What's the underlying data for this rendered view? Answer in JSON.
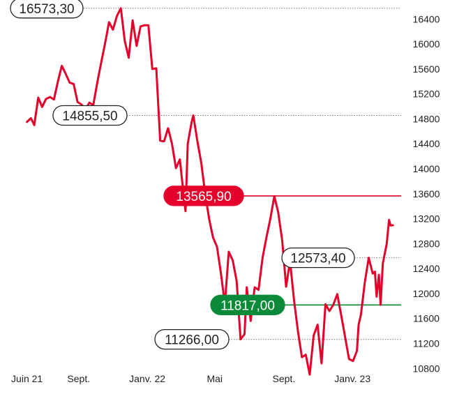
{
  "chart_data": {
    "type": "line",
    "title": "",
    "xlabel": "",
    "ylabel": "",
    "ylim": [
      10600,
      16700
    ],
    "y_ticks": [
      10800,
      11200,
      11600,
      12000,
      12400,
      12800,
      13200,
      13600,
      14000,
      14400,
      14800,
      15200,
      15600,
      16000,
      16400
    ],
    "y_tick_labels": [
      "10800",
      "11200",
      "11600",
      "12000",
      "12400",
      "12800",
      "13200",
      "13600",
      "14000",
      "14400",
      "14800",
      "15200",
      "15600",
      "16000",
      "16400"
    ],
    "x_range": [
      "2021-05-25",
      "2023-03-15"
    ],
    "x_ticks": [
      {
        "date": "2021-06-01",
        "label": "Juin 21"
      },
      {
        "date": "2021-09-01",
        "label": "Sept."
      },
      {
        "date": "2022-01-01",
        "label": "Janv. 22"
      },
      {
        "date": "2022-05-01",
        "label": "Mai"
      },
      {
        "date": "2022-09-01",
        "label": "Sept."
      },
      {
        "date": "2023-01-01",
        "label": "Janv. 23"
      }
    ],
    "grid": false,
    "legend": "none",
    "line_color": "#e4002b",
    "series": [
      {
        "points": [
          [
            "2021-06-01",
            14750
          ],
          [
            "2021-06-08",
            14810
          ],
          [
            "2021-06-14",
            14700
          ],
          [
            "2021-06-21",
            15140
          ],
          [
            "2021-06-28",
            14990
          ],
          [
            "2021-07-05",
            15120
          ],
          [
            "2021-07-12",
            15150
          ],
          [
            "2021-07-19",
            15110
          ],
          [
            "2021-07-26",
            15400
          ],
          [
            "2021-08-02",
            15650
          ],
          [
            "2021-08-09",
            15520
          ],
          [
            "2021-08-16",
            15380
          ],
          [
            "2021-08-23",
            15360
          ],
          [
            "2021-08-30",
            15070
          ],
          [
            "2021-09-06",
            15030
          ],
          [
            "2021-09-13",
            14950
          ],
          [
            "2021-09-20",
            15060
          ],
          [
            "2021-09-27",
            15020
          ],
          [
            "2021-10-04",
            15380
          ],
          [
            "2021-10-11",
            15700
          ],
          [
            "2021-10-18",
            16010
          ],
          [
            "2021-10-25",
            16350
          ],
          [
            "2021-11-01",
            16230
          ],
          [
            "2021-11-08",
            16450
          ],
          [
            "2021-11-15",
            16573.3
          ],
          [
            "2021-11-22",
            16050
          ],
          [
            "2021-11-29",
            15780
          ],
          [
            "2021-12-06",
            16380
          ],
          [
            "2021-12-13",
            15970
          ],
          [
            "2021-12-20",
            16280
          ],
          [
            "2021-12-27",
            16300
          ],
          [
            "2022-01-03",
            16300
          ],
          [
            "2022-01-10",
            15600
          ],
          [
            "2022-01-17",
            15610
          ],
          [
            "2022-01-24",
            14450
          ],
          [
            "2022-01-31",
            14440
          ],
          [
            "2022-02-07",
            14650
          ],
          [
            "2022-02-14",
            14400
          ],
          [
            "2022-02-21",
            14010
          ],
          [
            "2022-02-28",
            14150
          ],
          [
            "2022-03-07",
            13560
          ],
          [
            "2022-03-10",
            13320
          ],
          [
            "2022-03-14",
            14400
          ],
          [
            "2022-03-21",
            14750
          ],
          [
            "2022-03-24",
            14855.5
          ],
          [
            "2022-03-31",
            14450
          ],
          [
            "2022-04-07",
            14100
          ],
          [
            "2022-04-14",
            13600
          ],
          [
            "2022-04-21",
            13200
          ],
          [
            "2022-04-28",
            12900
          ],
          [
            "2022-05-05",
            12750
          ],
          [
            "2022-05-12",
            12330
          ],
          [
            "2022-05-19",
            11830
          ],
          [
            "2022-05-26",
            12670
          ],
          [
            "2022-06-02",
            12530
          ],
          [
            "2022-06-09",
            12200
          ],
          [
            "2022-06-16",
            11266
          ],
          [
            "2022-06-23",
            11350
          ],
          [
            "2022-06-27",
            12100
          ],
          [
            "2022-07-04",
            11560
          ],
          [
            "2022-07-11",
            12100
          ],
          [
            "2022-07-18",
            12060
          ],
          [
            "2022-07-25",
            12570
          ],
          [
            "2022-08-01",
            12900
          ],
          [
            "2022-08-08",
            13200
          ],
          [
            "2022-08-15",
            13560
          ],
          [
            "2022-08-22",
            13300
          ],
          [
            "2022-08-29",
            12850
          ],
          [
            "2022-09-05",
            12110
          ],
          [
            "2022-09-12",
            12520
          ],
          [
            "2022-09-19",
            11900
          ],
          [
            "2022-09-26",
            11400
          ],
          [
            "2022-10-03",
            10980
          ],
          [
            "2022-10-10",
            11020
          ],
          [
            "2022-10-17",
            10700
          ],
          [
            "2022-10-24",
            11330
          ],
          [
            "2022-10-31",
            11500
          ],
          [
            "2022-11-07",
            10880
          ],
          [
            "2022-11-14",
            11830
          ],
          [
            "2022-11-21",
            11720
          ],
          [
            "2022-11-28",
            11820
          ],
          [
            "2022-12-05",
            11990
          ],
          [
            "2022-12-12",
            11650
          ],
          [
            "2022-12-19",
            11300
          ],
          [
            "2022-12-26",
            10950
          ],
          [
            "2023-01-02",
            10920
          ],
          [
            "2023-01-09",
            11080
          ],
          [
            "2023-01-12",
            11500
          ],
          [
            "2023-01-16",
            11660
          ],
          [
            "2023-01-23",
            12180
          ],
          [
            "2023-01-30",
            12573.4
          ],
          [
            "2023-02-06",
            12320
          ],
          [
            "2023-02-10",
            12350
          ],
          [
            "2023-02-13",
            11950
          ],
          [
            "2023-02-17",
            12300
          ],
          [
            "2023-02-20",
            11820
          ],
          [
            "2023-02-24",
            12480
          ],
          [
            "2023-03-03",
            12800
          ],
          [
            "2023-03-07",
            13180
          ],
          [
            "2023-03-10",
            13090
          ],
          [
            "2023-03-14",
            13095
          ]
        ]
      }
    ],
    "annotations": [
      {
        "label": "16573,30",
        "value": 16573.3,
        "date": "2021-11-15",
        "style": "outline",
        "line_color": "#777777",
        "line_style": "dotted"
      },
      {
        "label": "14855,50",
        "value": 14855.5,
        "date": "2022-03-24",
        "style": "outline",
        "line_color": "#777777",
        "line_style": "dotted"
      },
      {
        "label": "13565,90",
        "value": 13565.9,
        "date": "2022-08-15",
        "style": "filled",
        "fill": "#e4002b",
        "line_color": "#e4002b",
        "line_style": "solid"
      },
      {
        "label": "12573,40",
        "value": 12573.4,
        "date": "2023-01-30",
        "style": "outline",
        "line_color": "#777777",
        "line_style": "dotted"
      },
      {
        "label": "11817,00",
        "value": 11817,
        "date": "2022-06-16",
        "style": "filled",
        "fill": "#0b8a3a",
        "line_color": "#0b8a3a",
        "line_style": "solid"
      },
      {
        "label": "11266,00",
        "value": 11266,
        "date": "2022-06-16",
        "style": "outline",
        "line_color": "#777777",
        "line_style": "dotted"
      }
    ]
  }
}
